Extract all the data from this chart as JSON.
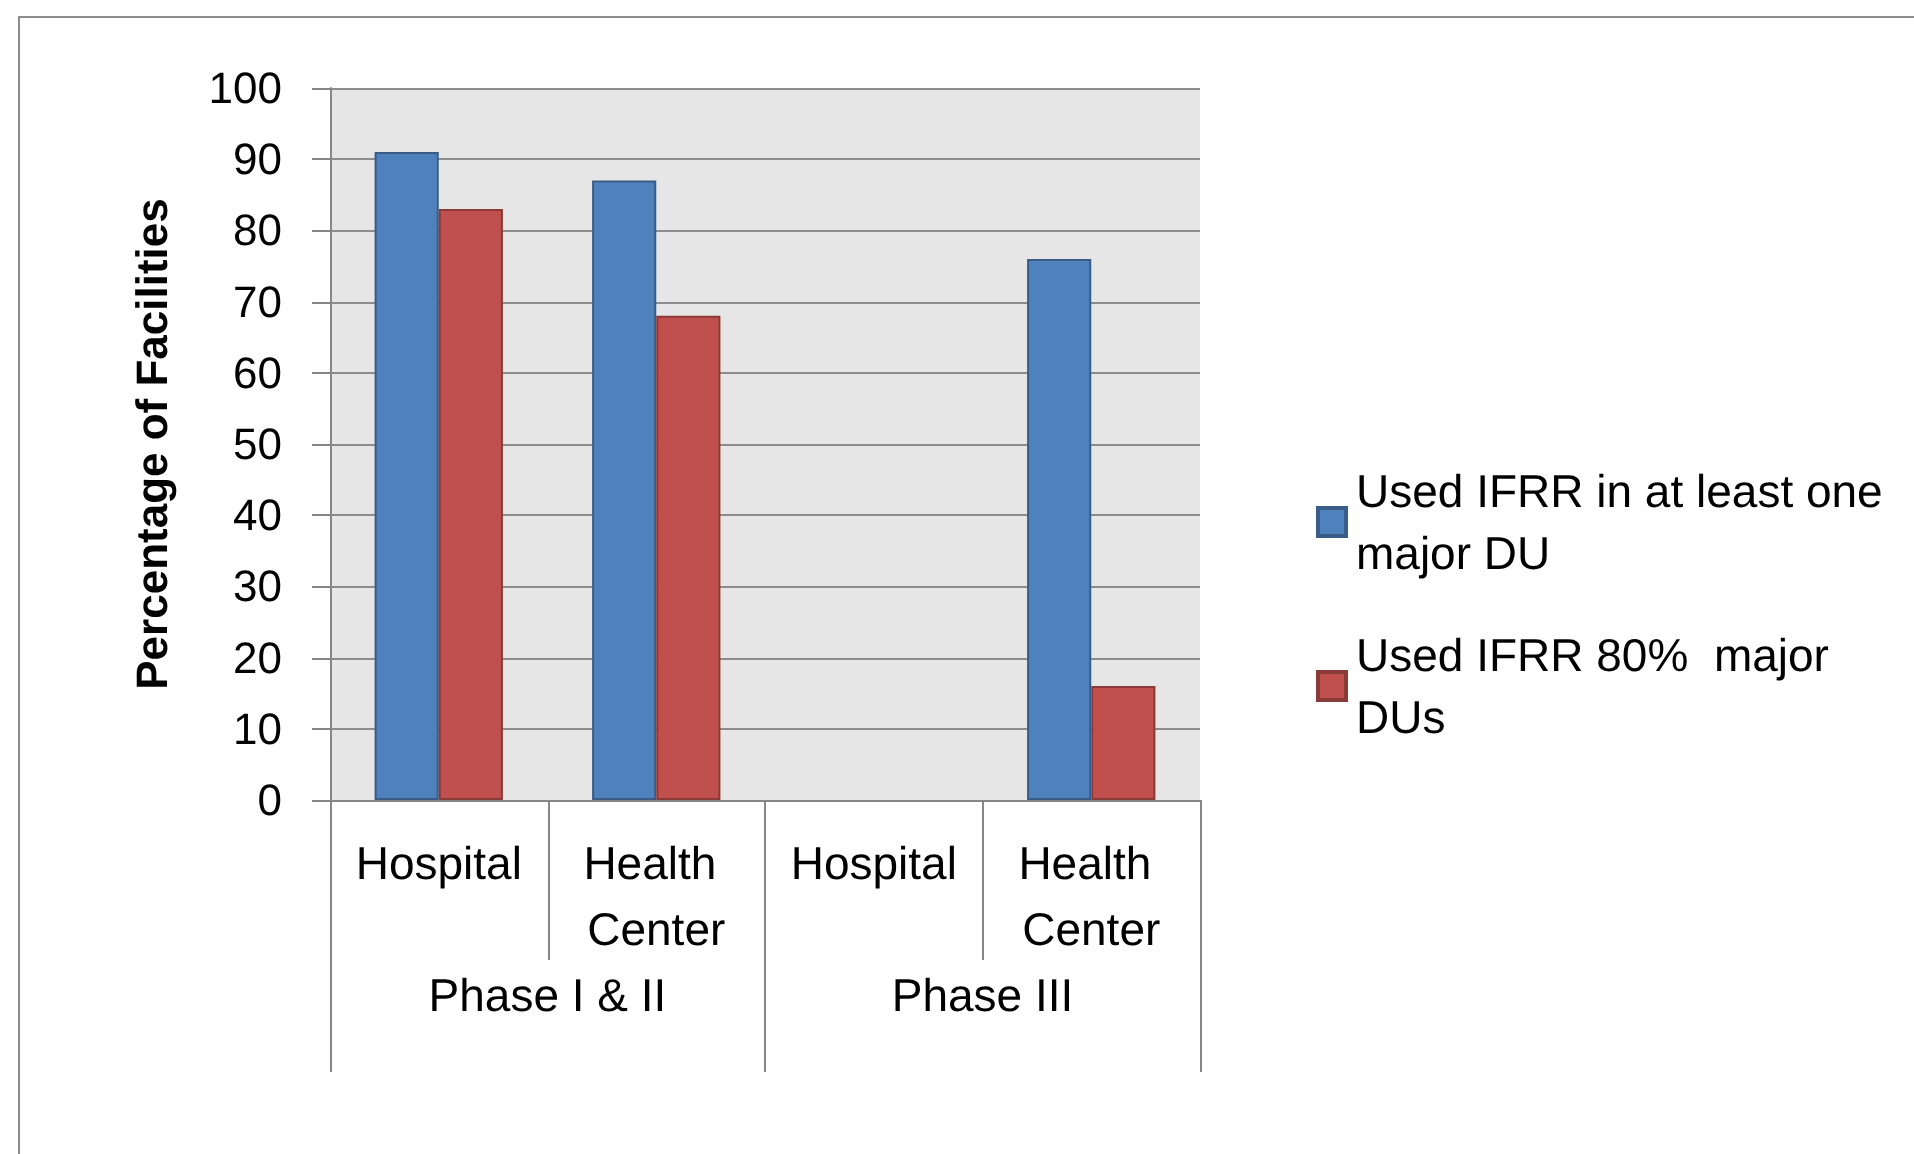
{
  "chart_data": {
    "type": "bar",
    "ylabel": "Percentage of Facilities",
    "categories": [
      "Hospital",
      "Health Center",
      "Hospital",
      "Health Center"
    ],
    "annotations": [
      "Phase I & II",
      "Phase III"
    ],
    "series": [
      {
        "name": "Used IFRR in at least one major DU",
        "color": "#4f81bd",
        "values": [
          91,
          87,
          null,
          76
        ]
      },
      {
        "name": "Used IFRR 80%  major DUs",
        "color": "#c0504d",
        "values": [
          83,
          68,
          null,
          16
        ]
      }
    ],
    "ylim": [
      0,
      100
    ],
    "yticks": [
      0,
      10,
      20,
      30,
      40,
      50,
      60,
      70,
      80,
      90,
      100
    ],
    "grid": "y",
    "legend": "right"
  }
}
